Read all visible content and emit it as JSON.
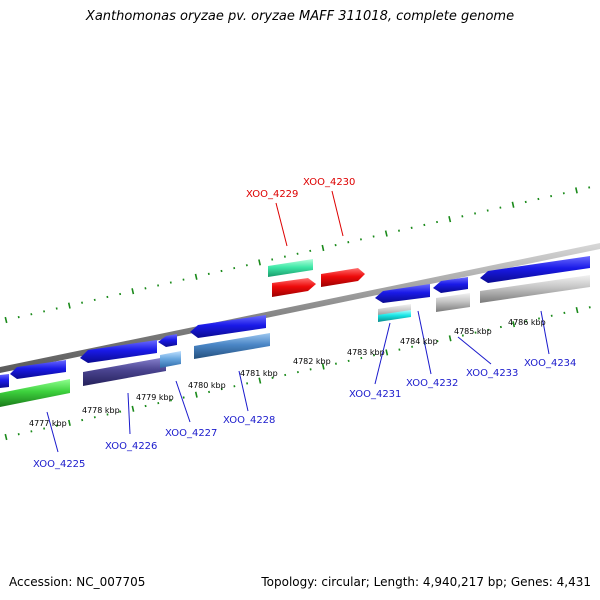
{
  "title": "Xanthomonas oryzae pv. oryzae MAFF 311018, complete genome",
  "footer": {
    "accession": "Accession: NC_007705",
    "topology": "Topology: circular; Length: 4,940,217 bp; Genes: 4,431"
  },
  "kbp_labels": [
    "4777 kbp",
    "4778 kbp",
    "4779 kbp",
    "4780 kbp",
    "4781 kbp",
    "4782 kbp",
    "4783 kbp",
    "4784 kbp",
    "4785 kbp",
    "4786 kbp"
  ],
  "genes_highlighted": [
    "XOO_4229",
    "XOO_4230"
  ],
  "genes": [
    "XOO_4225",
    "XOO_4226",
    "XOO_4227",
    "XOO_4228",
    "XOO_4231",
    "XOO_4232",
    "XOO_4233",
    "XOO_4234"
  ],
  "colors": {
    "forward": "#1212e6",
    "highlight": "#e60000",
    "label_blue": "#1a1acc",
    "label_red": "#dd0000",
    "ticks": "#1a8a1a",
    "backbone": "#8c8c8c"
  }
}
